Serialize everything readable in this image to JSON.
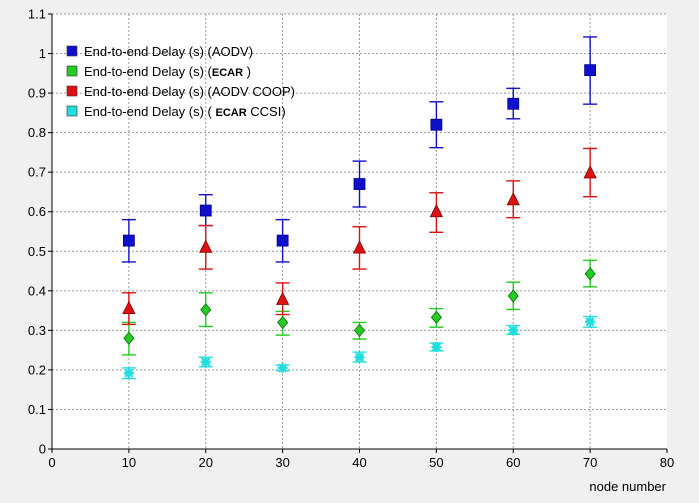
{
  "chart_data": {
    "type": "scatter",
    "title": "",
    "xlabel": "node number",
    "ylabel": "",
    "xlim": [
      0,
      80
    ],
    "ylim": [
      0,
      1.1
    ],
    "x_ticks": [
      "0",
      "10",
      "20",
      "30",
      "40",
      "50",
      "60",
      "70",
      "80"
    ],
    "y_ticks": [
      "0",
      "0.1",
      "0.2",
      "0.3",
      "0.4",
      "0.5",
      "0.6",
      "0.7",
      "0.8",
      "0.9",
      "1",
      "1.1"
    ],
    "grid": true,
    "legend_position": "top-left",
    "series": [
      {
        "name": "End-to-end Delay (s) (AODV)",
        "name_parts": [
          {
            "text": "End-to-end Delay (s) (AODV)",
            "bold": false
          }
        ],
        "color": "#1010cc",
        "marker": "square",
        "x": [
          10,
          20,
          30,
          40,
          50,
          60,
          70
        ],
        "y": [
          0.527,
          0.603,
          0.527,
          0.67,
          0.82,
          0.873,
          0.958
        ],
        "err_low": [
          0.473,
          0.565,
          0.473,
          0.612,
          0.762,
          0.835,
          0.872
        ],
        "err_high": [
          0.58,
          0.643,
          0.58,
          0.728,
          0.878,
          0.912,
          1.042
        ]
      },
      {
        "name": "End-to-end Delay (s) (ECAR )",
        "name_parts": [
          {
            "text": "End-to-end Delay (s) (",
            "bold": false
          },
          {
            "text": "ECAR",
            "bold": true
          },
          {
            "text": " )",
            "bold": false
          }
        ],
        "color": "#22cc22",
        "marker": "diamond",
        "x": [
          10,
          20,
          30,
          40,
          50,
          60,
          70
        ],
        "y": [
          0.28,
          0.352,
          0.32,
          0.3,
          0.333,
          0.387,
          0.443
        ],
        "err_low": [
          0.238,
          0.31,
          0.288,
          0.278,
          0.308,
          0.353,
          0.41
        ],
        "err_high": [
          0.32,
          0.395,
          0.348,
          0.32,
          0.355,
          0.422,
          0.477
        ]
      },
      {
        "name": "End-to-end Delay (s) (AODV COOP)",
        "name_parts": [
          {
            "text": "End-to-end Delay (s) (AODV COOP)",
            "bold": false
          }
        ],
        "color": "#dd1111",
        "marker": "triangle",
        "x": [
          10,
          20,
          30,
          40,
          50,
          60,
          70
        ],
        "y": [
          0.355,
          0.51,
          0.378,
          0.508,
          0.6,
          0.63,
          0.698
        ],
        "err_low": [
          0.315,
          0.455,
          0.34,
          0.455,
          0.548,
          0.585,
          0.638
        ],
        "err_high": [
          0.395,
          0.565,
          0.42,
          0.562,
          0.648,
          0.678,
          0.76
        ]
      },
      {
        "name": "End-to-end Delay (s) ( ECAR CCSI)",
        "name_parts": [
          {
            "text": "End-to-end Delay (s) ( ",
            "bold": false
          },
          {
            "text": "ECAR",
            "bold": true
          },
          {
            "text": " CCSI)",
            "bold": false
          }
        ],
        "color": "#22dddd",
        "marker": "asterisk",
        "x": [
          10,
          20,
          30,
          40,
          50,
          60,
          70
        ],
        "y": [
          0.192,
          0.22,
          0.205,
          0.232,
          0.258,
          0.3,
          0.322
        ],
        "err_low": [
          0.178,
          0.208,
          0.198,
          0.22,
          0.248,
          0.29,
          0.308
        ],
        "err_high": [
          0.205,
          0.232,
          0.212,
          0.245,
          0.268,
          0.312,
          0.335
        ]
      }
    ]
  },
  "colors": {
    "background": "#f0f0f0",
    "plot_background": "#ffffff",
    "grid": "#9a9a9a",
    "axis": "#000000"
  }
}
